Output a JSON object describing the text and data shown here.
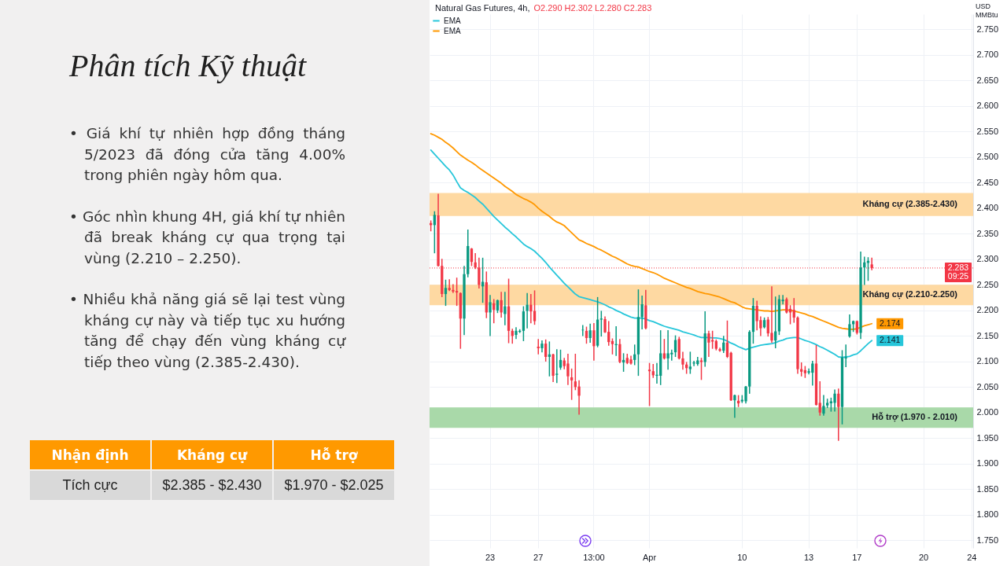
{
  "chart_data": [
    {
      "type": "other",
      "title": "Phân tích Kỹ thuật",
      "annotations": [
        "• Giá khí tự nhiên hợp đồng tháng 5/2023 đã đóng cửa tăng 4.00% trong phiên ngày hôm qua.",
        "• Góc nhìn khung 4H, giá khí tự nhiên đã break kháng cự qua trọng tại vùng (2.210 – 2.250).",
        "• Nhiều khả năng giá sẽ lại test vùng kháng cự này và tiếp tục xu hướng tăng để chạy đến vùng kháng cự tiếp theo vùng (2.385-2.430)."
      ]
    },
    {
      "type": "other",
      "categories": [
        "Nhận định",
        "Kháng cự",
        "Hỗ trợ"
      ],
      "annotations": [
        "Tích cực",
        "$2.385 - $2.430",
        "$1.970 - $2.025"
      ]
    },
    {
      "type": "candlestick",
      "title": "Natural Gas Futures, 4h,",
      "subtitle": "O2.290 H2.302 L2.280 C2.283",
      "ylabel": "USD MMBtu",
      "categories": [
        null,
        null,
        null,
        null,
        null,
        null,
        null,
        null,
        null,
        null,
        null,
        null,
        null,
        null,
        null,
        null,
        "23",
        null,
        null,
        null,
        null,
        null,
        null,
        null,
        null,
        null,
        null,
        null,
        null,
        "27",
        null,
        null,
        null,
        null,
        null,
        null,
        null,
        null,
        null,
        null,
        null,
        null,
        null,
        null,
        "13:00",
        null,
        null,
        null,
        null,
        null,
        null,
        null,
        null,
        null,
        null,
        null,
        null,
        null,
        null,
        "Apr",
        null,
        null,
        null,
        null,
        null,
        null,
        null,
        null,
        null,
        null,
        null,
        null,
        null,
        null,
        null,
        null,
        null,
        null,
        null,
        null,
        null,
        null,
        null,
        null,
        "10",
        null,
        null,
        null,
        null,
        null,
        null,
        null,
        null,
        null,
        null,
        null,
        null,
        null,
        null,
        null,
        null,
        null,
        "13",
        null,
        null,
        null,
        null,
        null,
        null,
        null,
        null,
        null,
        null,
        null,
        null,
        "17",
        null,
        null,
        null,
        null,
        null,
        null,
        null,
        null,
        null,
        null,
        null,
        null,
        null,
        null,
        null,
        null,
        null,
        "20",
        null,
        null,
        null,
        null,
        null,
        null,
        null,
        null,
        null,
        null,
        null,
        null,
        "24"
      ],
      "ohlc": [
        [
          2.371,
          2.375,
          2.356,
          2.367
        ],
        [
          2.367,
          2.393,
          2.313,
          2.387
        ],
        [
          2.386,
          2.427,
          2.287,
          2.287
        ],
        [
          2.287,
          2.3,
          2.227,
          2.232
        ],
        [
          2.232,
          2.259,
          2.21,
          2.244
        ],
        [
          2.244,
          2.26,
          2.239,
          2.24
        ],
        [
          2.24,
          2.25,
          2.235,
          2.237
        ],
        [
          2.238,
          2.263,
          2.21,
          2.235
        ],
        [
          2.234,
          2.234,
          2.126,
          2.184
        ],
        [
          2.184,
          2.286,
          2.153,
          2.271
        ],
        [
          2.271,
          2.357,
          2.266,
          2.326
        ],
        [
          2.321,
          2.321,
          2.288,
          2.295
        ],
        [
          2.294,
          2.311,
          2.282,
          2.284
        ],
        [
          2.284,
          2.302,
          2.244,
          2.25
        ],
        [
          2.247,
          2.302,
          2.216,
          2.256
        ],
        [
          2.255,
          2.275,
          2.186,
          2.196
        ],
        [
          2.196,
          2.229,
          2.151,
          2.216
        ],
        [
          2.214,
          2.221,
          2.176,
          2.201
        ],
        [
          2.2,
          2.22,
          2.196,
          2.22
        ],
        [
          2.22,
          2.235,
          2.187,
          2.196
        ],
        [
          2.193,
          2.235,
          2.172,
          2.208
        ],
        [
          2.208,
          2.261,
          2.137,
          2.16
        ],
        [
          2.16,
          2.163,
          2.136,
          2.15
        ],
        [
          2.152,
          2.166,
          2.145,
          2.16
        ],
        [
          2.158,
          2.162,
          2.157,
          2.16
        ],
        [
          2.16,
          2.207,
          2.141,
          2.198
        ],
        [
          2.199,
          2.233,
          2.166,
          2.211
        ],
        [
          2.211,
          2.231,
          2.176,
          2.198
        ],
        [
          2.199,
          2.238,
          2.173,
          2.179
        ],
        [
          2.129,
          2.143,
          2.115,
          2.126
        ],
        [
          2.126,
          2.14,
          2.119,
          2.135
        ],
        [
          2.135,
          2.142,
          2.101,
          2.109
        ],
        [
          2.109,
          2.138,
          2.072,
          2.114
        ],
        [
          2.114,
          2.114,
          2.061,
          2.072
        ],
        [
          2.074,
          2.123,
          2.059,
          2.076
        ],
        [
          2.088,
          2.122,
          2.085,
          2.103
        ],
        [
          2.102,
          2.106,
          2.086,
          2.091
        ],
        [
          2.096,
          2.114,
          2.055,
          2.071
        ],
        [
          2.069,
          2.085,
          2.026,
          2.063
        ],
        [
          2.061,
          2.114,
          2.045,
          2.05
        ],
        [
          2.051,
          2.062,
          1.997,
          2.033
        ],
        [
          2.161,
          2.17,
          2.151,
          2.162
        ],
        [
          2.16,
          2.167,
          2.136,
          2.146
        ],
        [
          2.146,
          2.173,
          2.138,
          2.161
        ],
        [
          2.161,
          2.174,
          2.103,
          2.13
        ],
        [
          2.131,
          2.225,
          2.129,
          2.182
        ],
        [
          2.182,
          2.198,
          2.15,
          2.184
        ],
        [
          2.183,
          2.187,
          2.157,
          2.157
        ],
        [
          2.158,
          2.178,
          2.132,
          2.138
        ],
        [
          2.14,
          2.144,
          2.115,
          2.134
        ],
        [
          2.132,
          2.168,
          2.112,
          2.134
        ],
        [
          2.134,
          2.143,
          2.098,
          2.099
        ],
        [
          2.098,
          2.115,
          2.081,
          2.103
        ],
        [
          2.107,
          2.114,
          2.096,
          2.097
        ],
        [
          2.104,
          2.11,
          2.095,
          2.096
        ],
        [
          2.103,
          2.132,
          2.094,
          2.114
        ],
        [
          2.114,
          2.24,
          2.073,
          2.187
        ],
        [
          2.187,
          2.228,
          2.164,
          2.212
        ],
        [
          2.21,
          2.239,
          2.164,
          2.165
        ],
        [
          2.084,
          2.096,
          2.014,
          2.081
        ],
        [
          2.081,
          2.094,
          2.069,
          2.073
        ],
        [
          2.072,
          2.096,
          2.058,
          2.074
        ],
        [
          2.072,
          2.16,
          2.055,
          2.116
        ],
        [
          2.116,
          2.143,
          2.105,
          2.106
        ],
        [
          2.106,
          2.16,
          2.085,
          2.116
        ],
        [
          2.114,
          2.122,
          2.103,
          2.117
        ],
        [
          2.118,
          2.15,
          2.11,
          2.142
        ],
        [
          2.144,
          2.147,
          2.105,
          2.106
        ],
        [
          2.106,
          2.118,
          2.085,
          2.094
        ],
        [
          2.094,
          2.098,
          2.077,
          2.087
        ],
        [
          2.085,
          2.118,
          2.077,
          2.09
        ],
        [
          2.096,
          2.1,
          2.092,
          2.098
        ],
        [
          2.095,
          2.108,
          2.093,
          2.102
        ],
        [
          2.102,
          2.106,
          2.065,
          2.099
        ],
        [
          2.099,
          2.197,
          2.091,
          2.155
        ],
        [
          2.155,
          2.159,
          2.11,
          2.137
        ],
        [
          2.142,
          2.159,
          2.126,
          2.139
        ],
        [
          2.14,
          2.142,
          2.123,
          2.125
        ],
        [
          2.124,
          2.126,
          2.12,
          2.121
        ],
        [
          2.121,
          2.149,
          2.118,
          2.137
        ],
        [
          2.137,
          2.179,
          2.108,
          2.109
        ],
        [
          2.117,
          2.118,
          2.024,
          2.024
        ],
        [
          2.024,
          2.034,
          1.991,
          2.034
        ],
        [
          2.023,
          2.033,
          2.012,
          2.018
        ],
        [
          2.022,
          2.033,
          2.02,
          2.025
        ],
        [
          2.022,
          2.051,
          2.019,
          2.051
        ],
        [
          2.051,
          2.16,
          2.038,
          2.158
        ],
        [
          2.158,
          2.223,
          2.136,
          2.209
        ],
        [
          2.209,
          2.218,
          2.162,
          2.179
        ],
        [
          2.181,
          2.187,
          2.151,
          2.165
        ],
        [
          2.167,
          2.185,
          2.166,
          2.181
        ],
        [
          2.182,
          2.186,
          2.15,
          2.155
        ],
        [
          2.156,
          2.246,
          2.138,
          2.141
        ],
        [
          2.141,
          2.226,
          2.127,
          2.159
        ],
        [
          2.159,
          2.229,
          2.153,
          2.222
        ],
        [
          2.218,
          2.229,
          2.213,
          2.221
        ],
        [
          2.222,
          2.224,
          2.195,
          2.196
        ],
        [
          2.203,
          2.209,
          2.174,
          2.196
        ],
        [
          2.201,
          2.223,
          2.177,
          2.186
        ],
        [
          2.186,
          2.187,
          2.077,
          2.085
        ],
        [
          2.085,
          2.097,
          2.072,
          2.08
        ],
        [
          2.083,
          2.09,
          2.069,
          2.077
        ],
        [
          2.078,
          2.085,
          2.076,
          2.081
        ],
        [
          2.078,
          2.1,
          2.054,
          2.096
        ],
        [
          2.096,
          2.131,
          2.015,
          2.015
        ],
        [
          2.019,
          2.06,
          1.995,
          2.0
        ],
        [
          1.998,
          2.033,
          1.995,
          2.013
        ],
        [
          2.014,
          2.026,
          2.01,
          2.019
        ],
        [
          2.018,
          2.028,
          2.003,
          2.022
        ],
        [
          2.019,
          2.044,
          2.003,
          2.037
        ],
        [
          2.037,
          2.046,
          1.946,
          2.011
        ],
        [
          2.011,
          2.121,
          1.978,
          2.108
        ],
        [
          2.106,
          2.132,
          2.09,
          2.108
        ],
        [
          2.149,
          2.191,
          2.148,
          2.173
        ],
        [
          2.173,
          2.179,
          2.159,
          2.179
        ],
        [
          2.179,
          2.179,
          2.154,
          2.156
        ],
        [
          2.156,
          2.314,
          2.145,
          2.284
        ],
        [
          2.284,
          2.304,
          2.251,
          2.294
        ],
        [
          2.293,
          2.303,
          2.259,
          2.297
        ],
        [
          2.29,
          2.302,
          2.28,
          2.283
        ],
        null,
        null,
        null,
        null,
        null,
        null,
        null,
        null,
        null,
        null,
        null,
        null,
        null,
        null,
        null,
        null,
        null,
        null,
        null,
        null,
        null,
        null,
        null,
        null,
        null,
        null,
        null
      ],
      "colors": [
        "#f23645",
        "#089981",
        "#f23645",
        "#f23645",
        "#089981",
        "#f23645",
        "#f23645",
        "#f23645",
        "#f23645",
        "#089981",
        "#089981",
        "#f23645",
        "#f23645",
        "#f23645",
        "#089981",
        "#f23645",
        "#089981",
        "#f23645",
        "#089981",
        "#f23645",
        "#089981",
        "#f23645",
        "#f23645",
        "#089981",
        "#089981",
        "#089981",
        "#089981",
        "#f23645",
        "#f23645",
        "#f23645",
        "#089981",
        "#f23645",
        "#089981",
        "#f23645",
        "#089981",
        "#089981",
        "#f23645",
        "#f23645",
        "#f23645",
        "#f23645",
        "#f23645",
        "#089981",
        "#f23645",
        "#089981",
        "#f23645",
        "#089981",
        "#089981",
        "#f23645",
        "#f23645",
        "#f23645",
        "#089981",
        "#f23645",
        "#089981",
        "#f23645",
        "#f23645",
        "#089981",
        "#089981",
        "#089981",
        "#f23645",
        "#f23645",
        "#f23645",
        "#089981",
        "#089981",
        "#f23645",
        "#089981",
        "#089981",
        "#089981",
        "#f23645",
        "#f23645",
        "#f23645",
        "#089981",
        "#089981",
        "#089981",
        "#f23645",
        "#089981",
        "#f23645",
        "#f23645",
        "#f23645",
        "#f23645",
        "#089981",
        "#f23645",
        "#f23645",
        "#089981",
        "#f23645",
        "#089981",
        "#089981",
        "#089981",
        "#089981",
        "#f23645",
        "#f23645",
        "#089981",
        "#f23645",
        "#f23645",
        "#089981",
        "#089981",
        "#089981",
        "#f23645",
        "#f23645",
        "#f23645",
        "#f23645",
        "#f23645",
        "#f23645",
        "#089981",
        "#089981",
        "#f23645",
        "#f23645",
        "#089981",
        "#089981",
        "#089981",
        "#089981",
        "#f23645",
        "#089981",
        "#089981",
        "#089981",
        "#089981",
        "#f23645",
        "#089981",
        "#089981",
        "#089981",
        "#f23645",
        null,
        null,
        null,
        null,
        null,
        null,
        null,
        null,
        null,
        null,
        null,
        null,
        null,
        null,
        null,
        null,
        null,
        null,
        null,
        null,
        null,
        null,
        null,
        null,
        null,
        null,
        null
      ],
      "series": [
        {
          "name": "EMA",
          "type": "line",
          "color": "#26c6da",
          "values": [
            2.514,
            2.506,
            2.498,
            2.49,
            2.482,
            2.475,
            2.465,
            2.452,
            2.44,
            2.435,
            2.431,
            2.426,
            2.421,
            2.414,
            2.408,
            2.4,
            2.392,
            2.384,
            2.377,
            2.37,
            2.363,
            2.357,
            2.35,
            2.344,
            2.337,
            2.33,
            2.325,
            2.321,
            2.316,
            2.309,
            2.302,
            2.294,
            2.285,
            2.277,
            2.269,
            2.261,
            2.253,
            2.246,
            2.239,
            2.232,
            2.227,
            2.225,
            2.223,
            2.221,
            2.219,
            2.217,
            2.214,
            2.211,
            2.207,
            2.204,
            2.2,
            2.197,
            2.193,
            2.19,
            2.187,
            2.185,
            2.185,
            2.185,
            2.183,
            2.18,
            2.178,
            2.175,
            2.172,
            2.169,
            2.167,
            2.165,
            2.163,
            2.161,
            2.158,
            2.156,
            2.154,
            2.152,
            2.149,
            2.147,
            2.147,
            2.147,
            2.146,
            2.146,
            2.145,
            2.143,
            2.14,
            2.136,
            2.133,
            2.129,
            2.126,
            2.123,
            2.126,
            2.128,
            2.13,
            2.132,
            2.133,
            2.134,
            2.135,
            2.137,
            2.14,
            2.142,
            2.145,
            2.146,
            2.147,
            2.147,
            2.144,
            2.141,
            2.139,
            2.136,
            2.133,
            2.129,
            2.126,
            2.122,
            2.118,
            2.114,
            2.109,
            2.108,
            2.109,
            2.11,
            2.113,
            2.115,
            2.121,
            2.128,
            2.135,
            2.141,
            null,
            null,
            null,
            null,
            null,
            null,
            null,
            null,
            null,
            null,
            null,
            null,
            null,
            null,
            null,
            null,
            null,
            null,
            null,
            null,
            null,
            null,
            null,
            null,
            null,
            null,
            null
          ],
          "value_labels": [
            null,
            null,
            null,
            null,
            null,
            null,
            null,
            null,
            null,
            null,
            null,
            null,
            null,
            null,
            null,
            null,
            null,
            null,
            null,
            null,
            null,
            null,
            null,
            null,
            null,
            null,
            null,
            null,
            null,
            null,
            null,
            null,
            null,
            null,
            null,
            null,
            null,
            null,
            null,
            null,
            null,
            null,
            null,
            null,
            null,
            null,
            null,
            null,
            null,
            null,
            null,
            null,
            null,
            null,
            null,
            null,
            null,
            null,
            null,
            null,
            null,
            null,
            null,
            null,
            null,
            null,
            null,
            null,
            null,
            null,
            null,
            null,
            null,
            null,
            null,
            null,
            null,
            null,
            null,
            null,
            null,
            null,
            null,
            null,
            null,
            null,
            null,
            null,
            null,
            null,
            null,
            null,
            null,
            null,
            null,
            null,
            null,
            null,
            null,
            null,
            null,
            null,
            null,
            null,
            null,
            null,
            null,
            null,
            null,
            null,
            null,
            null,
            null,
            null,
            null,
            null,
            null,
            null,
            null,
            "2.141",
            null,
            null,
            null,
            null,
            null,
            null,
            null,
            null,
            null,
            null,
            null,
            null,
            null,
            null,
            null,
            null,
            null,
            null,
            null,
            null,
            null,
            null,
            null,
            null,
            null,
            null,
            null
          ]
        },
        {
          "name": "EMA",
          "type": "line",
          "color": "#ff9800",
          "values": [
            2.546,
            2.543,
            2.539,
            2.535,
            2.529,
            2.524,
            2.518,
            2.511,
            2.504,
            2.499,
            2.494,
            2.49,
            2.485,
            2.479,
            2.474,
            2.469,
            2.464,
            2.459,
            2.454,
            2.449,
            2.443,
            2.438,
            2.433,
            2.427,
            2.423,
            2.419,
            2.416,
            2.412,
            2.407,
            2.4,
            2.394,
            2.389,
            2.384,
            2.378,
            2.373,
            2.37,
            2.366,
            2.359,
            2.352,
            2.345,
            2.338,
            2.335,
            2.331,
            2.328,
            2.325,
            2.321,
            2.318,
            2.314,
            2.31,
            2.306,
            2.303,
            2.299,
            2.295,
            2.291,
            2.288,
            2.286,
            2.285,
            2.282,
            2.279,
            2.276,
            2.274,
            2.271,
            2.267,
            2.263,
            2.26,
            2.257,
            2.254,
            2.251,
            2.248,
            2.245,
            2.243,
            2.24,
            2.237,
            2.235,
            2.233,
            2.232,
            2.23,
            2.228,
            2.226,
            2.223,
            2.22,
            2.217,
            2.215,
            2.211,
            2.207,
            2.204,
            2.203,
            2.202,
            2.201,
            2.2,
            2.199,
            2.199,
            2.198,
            2.199,
            2.2,
            2.201,
            2.201,
            2.2,
            2.199,
            2.197,
            2.195,
            2.193,
            2.19,
            2.188,
            2.185,
            2.182,
            2.179,
            2.176,
            2.173,
            2.17,
            2.167,
            2.165,
            2.164,
            2.163,
            2.163,
            2.164,
            2.167,
            2.17,
            2.172,
            2.174,
            null,
            null,
            null,
            null,
            null,
            null,
            null,
            null,
            null,
            null,
            null,
            null,
            null,
            null,
            null,
            null,
            null,
            null,
            null,
            null,
            null,
            null,
            null,
            null,
            null,
            null,
            null
          ],
          "value_labels": [
            null,
            null,
            null,
            null,
            null,
            null,
            null,
            null,
            null,
            null,
            null,
            null,
            null,
            null,
            null,
            null,
            null,
            null,
            null,
            null,
            null,
            null,
            null,
            null,
            null,
            null,
            null,
            null,
            null,
            null,
            null,
            null,
            null,
            null,
            null,
            null,
            null,
            null,
            null,
            null,
            null,
            null,
            null,
            null,
            null,
            null,
            null,
            null,
            null,
            null,
            null,
            null,
            null,
            null,
            null,
            null,
            null,
            null,
            null,
            null,
            null,
            null,
            null,
            null,
            null,
            null,
            null,
            null,
            null,
            null,
            null,
            null,
            null,
            null,
            null,
            null,
            null,
            null,
            null,
            null,
            null,
            null,
            null,
            null,
            null,
            null,
            null,
            null,
            null,
            null,
            null,
            null,
            null,
            null,
            null,
            null,
            null,
            null,
            null,
            null,
            null,
            null,
            null,
            null,
            null,
            null,
            null,
            null,
            null,
            null,
            null,
            null,
            null,
            null,
            null,
            null,
            null,
            null,
            null,
            "2.174",
            null,
            null,
            null,
            null,
            null,
            null,
            null,
            null,
            null,
            null,
            null,
            null,
            null,
            null,
            null,
            null,
            null,
            null,
            null,
            null,
            null,
            null,
            null,
            null,
            null,
            null,
            null
          ]
        }
      ],
      "ylim": [
        1.735,
        2.78
      ],
      "yticks": [
        {
          "value": 1.75,
          "label": "1.750"
        },
        {
          "value": 1.8,
          "label": "1.800"
        },
        {
          "value": 1.85,
          "label": "1.850"
        },
        {
          "value": 1.9,
          "label": "1.900"
        },
        {
          "value": 1.95,
          "label": "1.950"
        },
        {
          "value": 2,
          "label": "2.000"
        },
        {
          "value": 2.05,
          "label": "2.050"
        },
        {
          "value": 2.1,
          "label": "2.100"
        },
        {
          "value": 2.15,
          "label": "2.150"
        },
        {
          "value": 2.2,
          "label": "2.200"
        },
        {
          "value": 2.25,
          "label": "2.250"
        },
        {
          "value": 2.3,
          "label": "2.300"
        },
        {
          "value": 2.35,
          "label": "2.350"
        },
        {
          "value": 2.4,
          "label": "2.400"
        },
        {
          "value": 2.45,
          "label": "2.450"
        },
        {
          "value": 2.5,
          "label": "2.500"
        },
        {
          "value": 2.55,
          "label": "2.550"
        },
        {
          "value": 2.6,
          "label": "2.600"
        },
        {
          "value": 2.65,
          "label": "2.650"
        },
        {
          "value": 2.7,
          "label": "2.700"
        },
        {
          "value": 2.75,
          "label": "2.750"
        }
      ],
      "bands": [
        {
          "axis": "y",
          "from": 2.385,
          "to": 2.43,
          "label": "Kháng cự (2.385-2.430)",
          "color": "#fed9a2"
        },
        {
          "axis": "y",
          "from": 2.21,
          "to": 2.25,
          "label": "Kháng cự (2.210-2.250)",
          "color": "#fed9a2"
        },
        {
          "axis": "y",
          "from": 1.97,
          "to": 2.01,
          "label": "Hỗ trợ (1.970 - 2.010)",
          "color": "#a9d9a9"
        }
      ],
      "ref_lines": [
        {
          "axis": "y",
          "value": 2.283,
          "label": "2.283",
          "color": "#f23645",
          "line_style": "dotted"
        }
      ],
      "annotations": [
        "09:25"
      ],
      "grid": true,
      "legend": "top left"
    }
  ]
}
